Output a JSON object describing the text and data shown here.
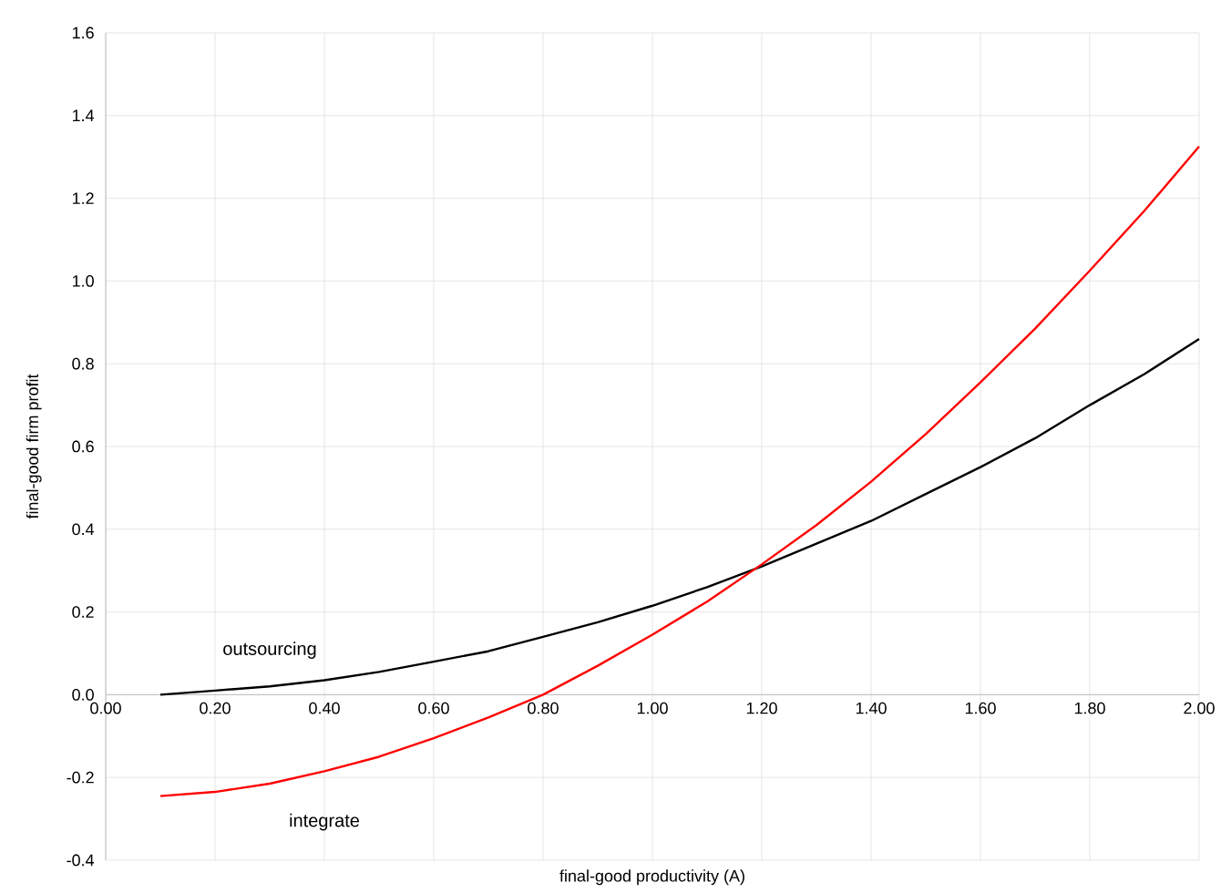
{
  "chart_data": {
    "type": "line",
    "xlabel": "final-good productivity (A)",
    "ylabel": "final-good firm profit",
    "x": [
      0.1,
      0.2,
      0.3,
      0.4,
      0.5,
      0.6,
      0.7,
      0.8,
      0.9,
      1.0,
      1.1,
      1.2,
      1.3,
      1.4,
      1.5,
      1.6,
      1.7,
      1.8,
      1.9,
      2.0
    ],
    "series": [
      {
        "name": "outsourcing",
        "color": "#000000",
        "values": [
          0.0,
          0.01,
          0.02,
          0.035,
          0.055,
          0.08,
          0.105,
          0.14,
          0.175,
          0.215,
          0.26,
          0.31,
          0.365,
          0.42,
          0.485,
          0.55,
          0.62,
          0.7,
          0.775,
          0.86
        ]
      },
      {
        "name": "integrate",
        "color": "#ff0000",
        "values": [
          -0.245,
          -0.235,
          -0.215,
          -0.185,
          -0.15,
          -0.105,
          -0.055,
          0.0,
          0.07,
          0.145,
          0.225,
          0.315,
          0.41,
          0.515,
          0.63,
          0.755,
          0.885,
          1.025,
          1.17,
          1.325
        ]
      }
    ],
    "xlim": [
      0,
      2
    ],
    "ylim": [
      -0.4,
      1.6
    ],
    "xticks": [
      {
        "value": 0,
        "label": "0.00"
      },
      {
        "value": 0.2,
        "label": "0.20"
      },
      {
        "value": 0.4,
        "label": "0.40"
      },
      {
        "value": 0.6,
        "label": "0.60"
      },
      {
        "value": 0.8,
        "label": "0.80"
      },
      {
        "value": 1.0,
        "label": "1.00"
      },
      {
        "value": 1.2,
        "label": "1.20"
      },
      {
        "value": 1.4,
        "label": "1.40"
      },
      {
        "value": 1.6,
        "label": "1.60"
      },
      {
        "value": 1.8,
        "label": "1.80"
      },
      {
        "value": 2.0,
        "label": "2.00"
      }
    ],
    "yticks": [
      {
        "value": -0.4,
        "label": "-0.4"
      },
      {
        "value": -0.2,
        "label": "-0.2"
      },
      {
        "value": 0,
        "label": "0.0"
      },
      {
        "value": 0.2,
        "label": "0.2"
      },
      {
        "value": 0.4,
        "label": "0.4"
      },
      {
        "value": 0.6,
        "label": "0.6"
      },
      {
        "value": 0.8,
        "label": "0.8"
      },
      {
        "value": 1.0,
        "label": "1.0"
      },
      {
        "value": 1.2,
        "label": "1.2"
      },
      {
        "value": 1.4,
        "label": "1.4"
      },
      {
        "value": 1.6,
        "label": "1.6"
      }
    ],
    "grid": true
  }
}
